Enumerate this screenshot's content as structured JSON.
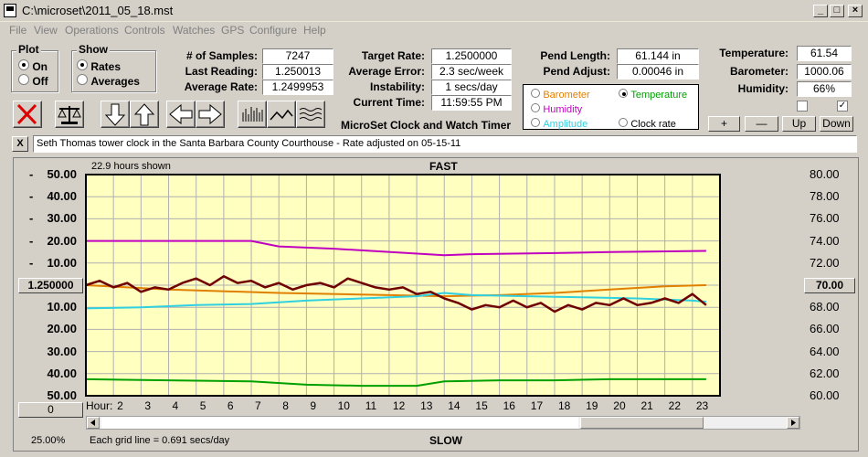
{
  "window": {
    "title": "C:\\microset\\2011_05_18.mst"
  },
  "menu": [
    "File",
    "View",
    "Operations",
    "Controls",
    "Watches",
    "GPS",
    "Configure",
    "Help"
  ],
  "plot_group": {
    "title": "Plot",
    "options": [
      "On",
      "Off"
    ],
    "selected": "On"
  },
  "show_group": {
    "title": "Show",
    "options": [
      "Rates",
      "Averages"
    ],
    "selected": "Rates"
  },
  "stats": {
    "samples_label": "# of Samples:",
    "samples": "7247",
    "last_label": "Last Reading:",
    "last": "1.250013",
    "avg_label": "Average Rate:",
    "avg": "1.2499953"
  },
  "rates": {
    "target_label": "Target Rate:",
    "target": "1.2500000",
    "avg_error_label": "Average Error:",
    "avg_error": "2.3 sec/week",
    "instability_label": "Instability:",
    "instability": "1 secs/day",
    "time_label": "Current Time:",
    "time": "11:59:55 PM"
  },
  "pend": {
    "length_label": "Pend Length:",
    "length": "61.144 in",
    "adjust_label": "Pend Adjust:",
    "adjust": "0.00046 in"
  },
  "env": {
    "temp_label": "Temperature:",
    "temp": "61.54",
    "baro_label": "Barometer:",
    "baro": "1000.06",
    "hum_label": "Humidity:",
    "hum": "66%"
  },
  "sensor_options": {
    "barometer": "Barometer",
    "temperature": "Temperature",
    "humidity": "Humidity",
    "amplitude": "Amplitude",
    "clock_rate": "Clock rate",
    "selected": "Temperature"
  },
  "colors": {
    "barometer": "#e08000",
    "temperature": "#00a000",
    "humidity": "#c000c0",
    "amplitude": "#30d0e0",
    "rate": "#700000",
    "plot_bg": "#ffffc0"
  },
  "app_name": "MicroSet Clock and Watch Timer",
  "adjust_buttons": {
    "plus": "+",
    "minus": "—",
    "up": "Up",
    "down": "Down"
  },
  "note": "Seth Thomas tower clock in the Santa Barbara County Courthouse - Rate adjusted on 05-15-11",
  "note_close": "X",
  "chart": {
    "hours_shown": "22.9 hours shown",
    "top_label": "FAST",
    "bottom_label": "SLOW",
    "center_value": "1.250000",
    "right_center": "70.00",
    "bottom_left_value": "0",
    "left_ticks": [
      "50.00",
      "40.00",
      "30.00",
      "20.00",
      "10.00",
      "10.00",
      "20.00",
      "30.00",
      "40.00",
      "50.00"
    ],
    "left_signs": [
      "-",
      "-",
      "-",
      "-",
      "-"
    ],
    "right_ticks": [
      "80.00",
      "78.00",
      "76.00",
      "74.00",
      "72.00",
      "68.00",
      "66.00",
      "64.00",
      "62.00",
      "60.00"
    ],
    "hour_label": "Hour:",
    "hours": [
      "2",
      "3",
      "4",
      "5",
      "6",
      "7",
      "8",
      "9",
      "10",
      "11",
      "12",
      "13",
      "14",
      "15",
      "16",
      "17",
      "18",
      "19",
      "20",
      "21",
      "22",
      "23"
    ],
    "grid_note": "Each grid line = 0.691 secs/day",
    "zoom": "25.00%"
  },
  "chart_data": {
    "type": "line",
    "x_unit": "hour",
    "xlim": [
      1,
      24
    ],
    "left_axis_center": 1.25,
    "ylim_right": [
      60,
      80
    ],
    "series": [
      {
        "name": "Humidity",
        "axis": "right",
        "x": [
          1,
          7,
          8,
          10,
          14,
          15,
          18,
          20,
          23.5
        ],
        "y": [
          74.0,
          74.0,
          73.5,
          73.3,
          72.7,
          72.8,
          72.9,
          73.0,
          73.1
        ]
      },
      {
        "name": "Barometer",
        "axis": "right",
        "x": [
          1,
          4,
          8,
          12,
          14,
          16,
          18,
          20,
          22,
          23.5
        ],
        "y": [
          70.0,
          69.6,
          69.3,
          69.1,
          69.0,
          69.1,
          69.3,
          69.6,
          69.9,
          70.0
        ]
      },
      {
        "name": "Amplitude",
        "axis": "right",
        "x": [
          1,
          3,
          5,
          7,
          9,
          11,
          13,
          14,
          15,
          17,
          19,
          21,
          23,
          23.5
        ],
        "y": [
          67.9,
          68.0,
          68.2,
          68.3,
          68.6,
          68.8,
          69.0,
          69.3,
          69.1,
          69.0,
          68.9,
          68.8,
          68.6,
          68.5
        ]
      },
      {
        "name": "Temperature",
        "axis": "right",
        "x": [
          1,
          4,
          7,
          9,
          11,
          13,
          14,
          16,
          18,
          20,
          22,
          23.5
        ],
        "y": [
          61.5,
          61.4,
          61.3,
          61.0,
          60.9,
          60.9,
          61.3,
          61.4,
          61.4,
          61.5,
          61.5,
          61.5
        ]
      },
      {
        "name": "Rate",
        "axis": "left",
        "x": [
          1,
          1.5,
          2,
          2.5,
          3,
          3.5,
          4,
          4.5,
          5,
          5.5,
          6,
          6.5,
          7,
          7.5,
          8,
          8.5,
          9,
          9.5,
          10,
          10.5,
          11,
          11.5,
          12,
          12.5,
          13,
          13.5,
          14,
          14.5,
          15,
          15.5,
          16,
          16.5,
          17,
          17.5,
          18,
          18.5,
          19,
          19.5,
          20,
          20.5,
          21,
          21.5,
          22,
          22.5,
          23,
          23.5
        ],
        "y": [
          0.0,
          2.0,
          -1.0,
          1.0,
          -3.0,
          -1.0,
          -2.0,
          1.0,
          3.0,
          0.0,
          4.0,
          1.0,
          2.0,
          -1.0,
          1.0,
          -2.0,
          0.0,
          1.0,
          -1.0,
          3.0,
          1.0,
          -1.0,
          -2.0,
          -1.0,
          -4.0,
          -3.0,
          -6.0,
          -8.0,
          -11.0,
          -9.0,
          -10.0,
          -7.0,
          -10.0,
          -8.0,
          -12.0,
          -9.0,
          -11.0,
          -8.0,
          -9.0,
          -6.0,
          -9.0,
          -8.0,
          -6.0,
          -8.0,
          -4.0,
          -9.0
        ]
      }
    ]
  }
}
